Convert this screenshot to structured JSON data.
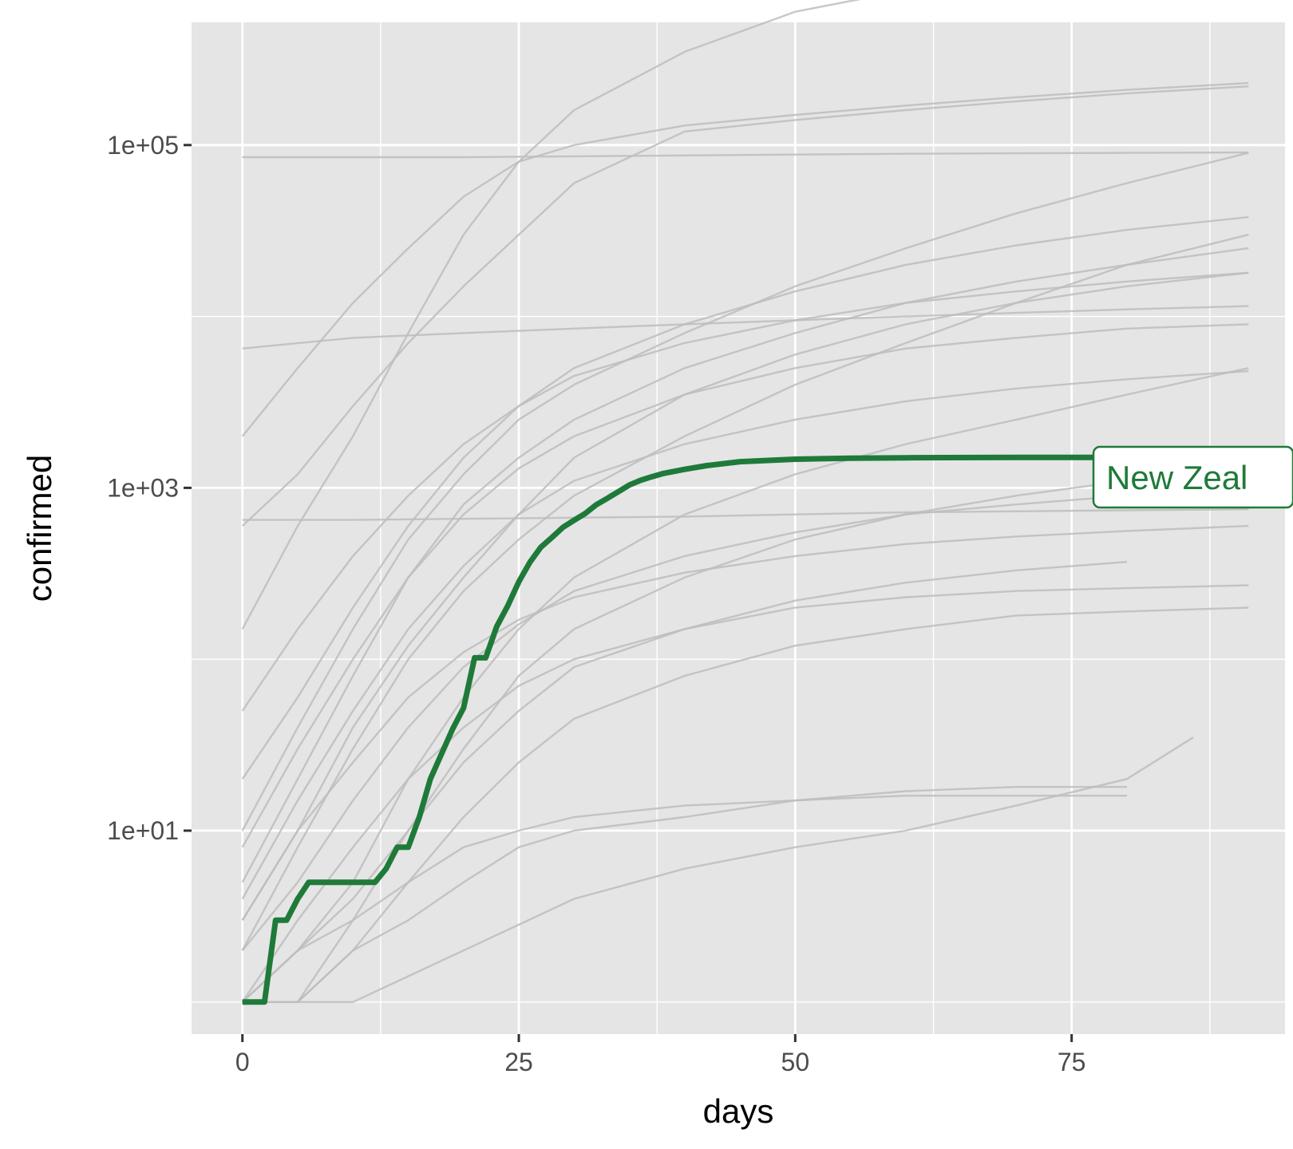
{
  "chart_data": {
    "type": "line",
    "xlabel": "days",
    "ylabel": "confirmed",
    "y_scale": "log10",
    "xlim": [
      -4.6,
      94.3
    ],
    "ylim": [
      0.65,
      520000
    ],
    "x_ticks": [
      0,
      25,
      50,
      75
    ],
    "x_tick_labels": [
      "0",
      "25",
      "50",
      "75"
    ],
    "x_minor_grid": [
      12.5,
      37.5,
      62.5,
      87.5
    ],
    "y_ticks": [
      10,
      1000,
      100000
    ],
    "y_tick_labels": [
      "1e+01",
      "1e+03",
      "1e+05"
    ],
    "y_minor_grid": [
      1,
      100,
      10000,
      1000000
    ],
    "grid": true,
    "legend": "none",
    "colors": {
      "panel": "#e5e5e5",
      "grid": "#ffffff",
      "background_series": "#bdbdbd",
      "highlight": "#1f7a3a"
    },
    "background_series_note": "many countries, grey",
    "highlight_series": {
      "name": "New Zealand",
      "label_visible": "New Zeal",
      "x": [
        0,
        1,
        2,
        3,
        4,
        5,
        6,
        7,
        8,
        9,
        10,
        11,
        12,
        13,
        14,
        15,
        16,
        17,
        18,
        19,
        20,
        21,
        22,
        23,
        24,
        25,
        26,
        27,
        28,
        29,
        30,
        31,
        32,
        33,
        34,
        35,
        36,
        37,
        38,
        40,
        42,
        45,
        50,
        55,
        60,
        70,
        80,
        91
      ],
      "y": [
        1,
        1,
        1,
        3,
        3,
        4,
        5,
        5,
        5,
        5,
        5,
        5,
        5,
        6,
        8,
        8,
        12,
        20,
        28,
        39,
        52,
        102,
        102,
        155,
        205,
        283,
        368,
        451,
        514,
        589,
        647,
        708,
        797,
        868,
        950,
        1039,
        1106,
        1160,
        1210,
        1283,
        1349,
        1422,
        1470,
        1490,
        1498,
        1504,
        1504,
        1504
      ]
    },
    "background_series": [
      {
        "x": [
          0,
          5,
          10,
          15,
          20,
          25,
          30,
          40,
          50,
          60,
          70,
          80,
          91
        ],
        "y": [
          600,
          1200,
          3000,
          7000,
          15000,
          30000,
          60000,
          120000,
          140000,
          160000,
          180000,
          200000,
          220000
        ]
      },
      {
        "x": [
          0,
          5,
          10,
          15,
          20,
          25,
          30,
          40,
          50,
          60,
          70,
          80,
          91
        ],
        "y": [
          150,
          600,
          2000,
          8000,
          30000,
          80000,
          160000,
          350000,
          600000,
          800000,
          1000000,
          1150000,
          1300000
        ]
      },
      {
        "x": [
          0,
          10,
          20,
          30,
          40,
          50,
          60,
          70,
          80,
          91
        ],
        "y": [
          85000,
          85000,
          85000,
          86000,
          87000,
          88000,
          89000,
          89500,
          90000,
          90500
        ]
      },
      {
        "x": [
          0,
          10,
          20,
          30,
          40,
          50,
          60,
          70,
          80,
          91
        ],
        "y": [
          6500,
          7500,
          8000,
          8500,
          9000,
          9500,
          10000,
          10500,
          11000,
          11500
        ]
      },
      {
        "x": [
          0,
          5,
          10,
          15,
          20,
          25,
          30,
          40,
          50,
          60,
          70,
          80,
          91
        ],
        "y": [
          2000,
          5000,
          12000,
          25000,
          50000,
          80000,
          100000,
          130000,
          150000,
          170000,
          190000,
          210000,
          230000
        ]
      },
      {
        "x": [
          0,
          5,
          10,
          15,
          20,
          25,
          30,
          40,
          50,
          60,
          70,
          80,
          91
        ],
        "y": [
          3,
          10,
          40,
          120,
          300,
          700,
          1500,
          3500,
          6000,
          9000,
          12000,
          15000,
          18000
        ]
      },
      {
        "x": [
          0,
          10,
          20,
          30,
          40,
          50,
          60,
          70,
          80,
          91
        ],
        "y": [
          650,
          650,
          660,
          670,
          680,
          700,
          720,
          730,
          740,
          750
        ]
      },
      {
        "x": [
          0,
          5,
          10,
          15,
          20,
          25,
          30,
          40,
          50,
          60,
          70,
          80,
          91
        ],
        "y": [
          1,
          2,
          5,
          20,
          60,
          150,
          300,
          700,
          1200,
          1800,
          2500,
          3500,
          5000
        ]
      },
      {
        "x": [
          0,
          5,
          10,
          15,
          20,
          25,
          30,
          40,
          50,
          60,
          70,
          80,
          91
        ],
        "y": [
          2,
          8,
          30,
          100,
          250,
          500,
          900,
          2000,
          4000,
          7000,
          12000,
          20000,
          30000
        ]
      },
      {
        "x": [
          0,
          5,
          10,
          15,
          20,
          25,
          30,
          40,
          50,
          60,
          70,
          80,
          91
        ],
        "y": [
          1,
          1,
          3,
          10,
          30,
          80,
          150,
          300,
          500,
          700,
          900,
          1100,
          1300
        ]
      },
      {
        "x": [
          0,
          5,
          10,
          15,
          20,
          25,
          30,
          40,
          50,
          60,
          70,
          80,
          91
        ],
        "y": [
          5,
          20,
          80,
          300,
          800,
          1500,
          2500,
          5000,
          8000,
          12000,
          16000,
          20000,
          25000
        ]
      },
      {
        "x": [
          0,
          5,
          10,
          15,
          20,
          25,
          30,
          40,
          50,
          60,
          70,
          80
        ],
        "y": [
          1,
          2,
          4,
          10,
          25,
          50,
          90,
          150,
          220,
          280,
          330,
          370
        ]
      },
      {
        "x": [
          0,
          5,
          10,
          15,
          20,
          25,
          30,
          40,
          50,
          60,
          70,
          80
        ],
        "y": [
          1,
          1,
          2,
          3,
          5,
          8,
          10,
          12,
          15,
          17,
          18,
          18
        ]
      },
      {
        "x": [
          0,
          5,
          10,
          15,
          20,
          25,
          30,
          40,
          50,
          60,
          70,
          80,
          91
        ],
        "y": [
          50,
          150,
          400,
          900,
          1800,
          3000,
          4500,
          7000,
          9500,
          12000,
          14000,
          16000,
          18000
        ]
      },
      {
        "x": [
          0,
          5,
          10,
          15,
          20,
          25,
          30,
          40,
          50,
          60,
          70,
          80,
          91
        ],
        "y": [
          10,
          40,
          150,
          500,
          1200,
          2500,
          4000,
          8000,
          15000,
          25000,
          40000,
          60000,
          90000
        ]
      },
      {
        "x": [
          0,
          5,
          10,
          15,
          20,
          25,
          30,
          40,
          50,
          60,
          70,
          80,
          91
        ],
        "y": [
          3,
          10,
          25,
          60,
          110,
          170,
          230,
          320,
          400,
          470,
          520,
          560,
          600
        ]
      },
      {
        "x": [
          0,
          5,
          10,
          15,
          20,
          25,
          30,
          40,
          50,
          60,
          70,
          80,
          91
        ],
        "y": [
          1,
          3,
          8,
          20,
          40,
          70,
          100,
          150,
          200,
          230,
          250,
          260,
          270
        ]
      },
      {
        "x": [
          0,
          5,
          10,
          15,
          20,
          25,
          30,
          40,
          50,
          60,
          70,
          80,
          91
        ],
        "y": [
          2,
          5,
          15,
          40,
          90,
          160,
          250,
          400,
          550,
          700,
          800,
          900,
          1000
        ]
      },
      {
        "x": [
          0,
          10,
          20,
          30,
          40,
          50,
          60,
          70,
          80,
          86
        ],
        "y": [
          1,
          1,
          2,
          4,
          6,
          8,
          10,
          14,
          20,
          35
        ]
      },
      {
        "x": [
          0,
          5,
          10,
          15,
          20,
          25,
          30,
          40,
          50,
          60,
          70,
          80,
          91
        ],
        "y": [
          8,
          30,
          100,
          300,
          700,
          1300,
          2000,
          3500,
          5000,
          6500,
          7500,
          8500,
          9000
        ]
      },
      {
        "x": [
          0,
          5,
          10,
          15,
          20,
          25,
          30,
          40,
          50,
          60,
          70,
          80,
          91
        ],
        "y": [
          1,
          1,
          2,
          5,
          12,
          25,
          45,
          80,
          120,
          150,
          180,
          190,
          200
        ]
      },
      {
        "x": [
          0,
          5,
          10,
          15,
          20,
          25,
          30,
          40,
          50,
          60,
          70,
          80,
          91
        ],
        "y": [
          20,
          60,
          200,
          600,
          1500,
          3000,
          5000,
          9000,
          14000,
          20000,
          26000,
          32000,
          38000
        ]
      },
      {
        "x": [
          0,
          5,
          10,
          15,
          20,
          25,
          30,
          40,
          50,
          60,
          70,
          80
        ],
        "y": [
          1,
          2,
          3,
          5,
          8,
          10,
          12,
          14,
          15,
          16,
          16,
          16
        ]
      },
      {
        "x": [
          0,
          5,
          10,
          15,
          20,
          25,
          30,
          40,
          50,
          60,
          70,
          80,
          91
        ],
        "y": [
          4,
          15,
          50,
          150,
          350,
          700,
          1100,
          1800,
          2500,
          3200,
          3800,
          4300,
          4800
        ]
      }
    ]
  },
  "callout": {
    "text": "New Zeal"
  }
}
